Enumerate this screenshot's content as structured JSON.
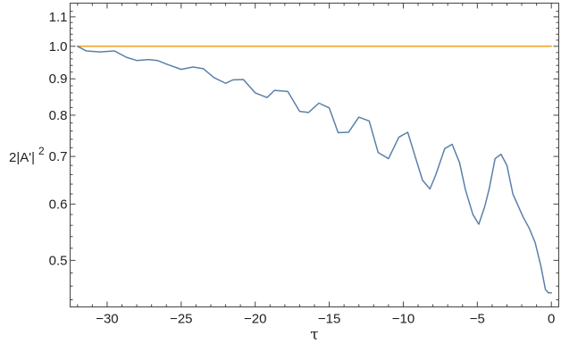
{
  "chart_data": {
    "type": "line",
    "title": "",
    "xlabel": "τ",
    "ylabel": "2|A'|²",
    "ylabel_parts": {
      "prefix": "2|A'|",
      "exponent": "2"
    },
    "xlim": [
      -32.5,
      0.5
    ],
    "ylim": [
      0.43,
      1.15
    ],
    "y_scale": "log",
    "grid": false,
    "legend": "none",
    "x_ticks": [
      -30,
      -25,
      -20,
      -15,
      -10,
      -5,
      0
    ],
    "x_tick_labels": [
      "−30",
      "−25",
      "−20",
      "−15",
      "−10",
      "−5",
      "0"
    ],
    "y_ticks": [
      0.5,
      0.6,
      0.7,
      0.8,
      0.9,
      1.0,
      1.1
    ],
    "y_tick_labels": [
      "0.5",
      "0.6",
      "0.7",
      "0.8",
      "0.9",
      "1.0",
      "1.1"
    ],
    "series": [
      {
        "color": "#f0a020",
        "x": [
          -32,
          0
        ],
        "y": [
          1.0,
          1.0
        ]
      },
      {
        "color": "#5b80aa",
        "x": [
          -32,
          -31.4,
          -30.5,
          -29.5,
          -28.7,
          -28,
          -27.2,
          -26.6,
          -26,
          -25,
          -24.2,
          -23.5,
          -22.8,
          -22,
          -21.5,
          -20.8,
          -20,
          -19.2,
          -18.7,
          -17.8,
          -17,
          -16.4,
          -15.7,
          -15,
          -14.4,
          -13.7,
          -13,
          -12.3,
          -11.7,
          -11,
          -10.3,
          -9.7,
          -9.2,
          -8.7,
          -8.2,
          -7.8,
          -7.2,
          -6.7,
          -6.2,
          -5.8,
          -5.3,
          -4.9,
          -4.5,
          -4.2,
          -3.8,
          -3.4,
          -3.0,
          -2.6,
          -2.3,
          -1.9,
          -1.5,
          -1.1,
          -0.7,
          -0.4,
          -0.2,
          -0.1,
          -0.05,
          0
        ],
        "y": [
          1.0,
          0.985,
          0.982,
          0.985,
          0.965,
          0.955,
          0.958,
          0.955,
          0.944,
          0.928,
          0.935,
          0.93,
          0.904,
          0.887,
          0.897,
          0.898,
          0.86,
          0.847,
          0.867,
          0.864,
          0.81,
          0.807,
          0.832,
          0.819,
          0.756,
          0.757,
          0.795,
          0.785,
          0.709,
          0.695,
          0.745,
          0.757,
          0.7,
          0.648,
          0.63,
          0.66,
          0.718,
          0.728,
          0.686,
          0.628,
          0.58,
          0.562,
          0.595,
          0.63,
          0.695,
          0.705,
          0.68,
          0.62,
          0.6,
          0.575,
          0.555,
          0.53,
          0.49,
          0.455,
          0.45,
          0.45,
          0.45,
          0.45
        ]
      }
    ]
  }
}
